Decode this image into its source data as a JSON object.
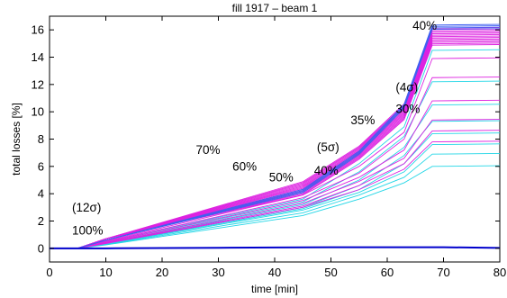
{
  "chart_data": {
    "type": "line",
    "title": "fill 1917 – beam 1",
    "xlabel": "time [min]",
    "ylabel": "total losses [%]",
    "xlim": [
      0,
      80
    ],
    "ylim": [
      -1,
      17
    ],
    "xticks": [
      0,
      10,
      20,
      30,
      40,
      50,
      60,
      70,
      80
    ],
    "yticks": [
      0,
      2,
      4,
      6,
      8,
      10,
      12,
      14,
      16
    ],
    "grid": false,
    "x": [
      0,
      5,
      10,
      20,
      30,
      40,
      45,
      46,
      55,
      56,
      63,
      64,
      68,
      80
    ],
    "colors": {
      "magenta": "#dd22e0",
      "cyan": "#22d6e6",
      "blue": "#4060f0",
      "flat": "#0000cc"
    },
    "series_groups": [
      {
        "color": "magenta",
        "y10": 0.7,
        "y45": 4.4,
        "y55": 7.0,
        "y63": 10.0,
        "yplat": 15.5,
        "count": 13
      },
      {
        "color": "blue",
        "y10": 0.6,
        "y45": 4.2,
        "y55": 7.0,
        "y63": 10.4,
        "yplat": 16.2,
        "count": 4
      },
      {
        "color": "magenta",
        "y10": 0.55,
        "y45": 3.9,
        "y55": 6.0,
        "y63": 8.5,
        "yplat": 13.9,
        "count": 1
      },
      {
        "color": "magenta",
        "y10": 0.5,
        "y45": 3.7,
        "y55": 5.5,
        "y63": 8.0,
        "yplat": 12.5,
        "count": 1
      },
      {
        "color": "magenta",
        "y10": 0.45,
        "y45": 3.5,
        "y55": 5.2,
        "y63": 7.2,
        "yplat": 10.8,
        "count": 1
      },
      {
        "color": "magenta",
        "y10": 0.4,
        "y45": 3.3,
        "y55": 4.9,
        "y63": 6.6,
        "yplat": 9.4,
        "count": 1
      },
      {
        "color": "magenta",
        "y10": 0.38,
        "y45": 3.1,
        "y55": 4.6,
        "y63": 6.2,
        "yplat": 8.6,
        "count": 1
      },
      {
        "color": "magenta",
        "y10": 0.35,
        "y45": 3.0,
        "y55": 4.3,
        "y63": 5.8,
        "yplat": 7.8,
        "count": 1
      },
      {
        "color": "cyan",
        "y10": 0.5,
        "y45": 3.6,
        "y55": 6.2,
        "y63": 8.9,
        "yplat": 14.5,
        "count": 1
      },
      {
        "color": "cyan",
        "y10": 0.45,
        "y45": 3.4,
        "y55": 5.6,
        "y63": 8.2,
        "yplat": 12.2,
        "count": 1
      },
      {
        "color": "cyan",
        "y10": 0.4,
        "y45": 3.2,
        "y55": 5.0,
        "y63": 7.4,
        "yplat": 10.5,
        "count": 1
      },
      {
        "color": "cyan",
        "y10": 0.36,
        "y45": 3.0,
        "y55": 4.6,
        "y63": 6.8,
        "yplat": 9.3,
        "count": 1
      },
      {
        "color": "cyan",
        "y10": 0.33,
        "y45": 2.9,
        "y55": 4.3,
        "y63": 6.2,
        "yplat": 8.4,
        "count": 1
      },
      {
        "color": "cyan",
        "y10": 0.3,
        "y45": 2.8,
        "y55": 4.1,
        "y63": 5.6,
        "yplat": 7.6,
        "count": 1
      },
      {
        "color": "cyan",
        "y10": 0.28,
        "y45": 2.6,
        "y55": 3.9,
        "y63": 5.2,
        "yplat": 6.9,
        "count": 1
      },
      {
        "color": "cyan",
        "y10": 0.25,
        "y45": 2.4,
        "y55": 3.6,
        "y63": 4.8,
        "yplat": 6.0,
        "count": 1
      }
    ],
    "flat_series": {
      "color": "flat",
      "x": [
        0,
        10,
        20,
        30,
        40,
        50,
        60,
        70,
        80
      ],
      "values": [
        0,
        0,
        0.02,
        0.04,
        0.06,
        0.08,
        0.08,
        0.08,
        0.03
      ]
    },
    "annotations": [
      {
        "text": "(12σ)",
        "x": 4.0,
        "y": 2.7
      },
      {
        "text": "100%",
        "x": 4.0,
        "y": 1.0
      },
      {
        "text": "70%",
        "x": 26.0,
        "y": 6.9
      },
      {
        "text": "60%",
        "x": 32.5,
        "y": 5.7
      },
      {
        "text": "50%",
        "x": 39.0,
        "y": 4.9
      },
      {
        "text": "(5σ)",
        "x": 47.5,
        "y": 7.1
      },
      {
        "text": "40%",
        "x": 47.0,
        "y": 5.4
      },
      {
        "text": "35%",
        "x": 53.5,
        "y": 9.1
      },
      {
        "text": "(4σ)",
        "x": 61.5,
        "y": 11.5
      },
      {
        "text": "30%",
        "x": 61.5,
        "y": 9.9
      },
      {
        "text": "40%",
        "x": 64.5,
        "y": 16.0
      }
    ]
  }
}
